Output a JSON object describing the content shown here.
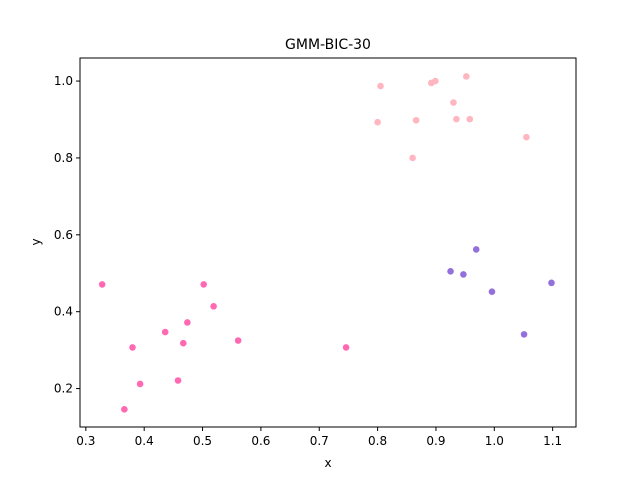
{
  "chart_data": {
    "type": "scatter",
    "title": "GMM-BIC-30",
    "xlabel": "x",
    "ylabel": "y",
    "xlim": [
      0.29,
      1.14
    ],
    "ylim": [
      0.1,
      1.06
    ],
    "xticks": [
      0.3,
      0.4,
      0.5,
      0.6,
      0.7,
      0.8,
      0.9,
      1.0,
      1.1
    ],
    "yticks": [
      0.2,
      0.4,
      0.6,
      0.8,
      1.0
    ],
    "grid": false,
    "legend": "none",
    "series": [
      {
        "color": "#ff69b4",
        "points": [
          [
            0.328,
            0.471
          ],
          [
            0.366,
            0.146
          ],
          [
            0.38,
            0.307
          ],
          [
            0.393,
            0.212
          ],
          [
            0.436,
            0.347
          ],
          [
            0.458,
            0.221
          ],
          [
            0.467,
            0.318
          ],
          [
            0.474,
            0.372
          ],
          [
            0.502,
            0.471
          ],
          [
            0.519,
            0.414
          ],
          [
            0.561,
            0.325
          ],
          [
            0.746,
            0.307
          ]
        ]
      },
      {
        "color": "#ffb6c1",
        "points": [
          [
            0.8,
            0.893
          ],
          [
            0.805,
            0.987
          ],
          [
            0.86,
            0.8
          ],
          [
            0.866,
            0.898
          ],
          [
            0.892,
            0.995
          ],
          [
            0.899,
            1.0
          ],
          [
            0.93,
            0.944
          ],
          [
            0.935,
            0.901
          ],
          [
            0.952,
            1.012
          ],
          [
            0.958,
            0.901
          ],
          [
            1.055,
            0.854
          ]
        ]
      },
      {
        "color": "#9370db",
        "points": [
          [
            0.925,
            0.505
          ],
          [
            0.947,
            0.497
          ],
          [
            0.969,
            0.562
          ],
          [
            0.996,
            0.452
          ],
          [
            1.051,
            0.341
          ],
          [
            1.098,
            0.475
          ]
        ]
      }
    ]
  }
}
